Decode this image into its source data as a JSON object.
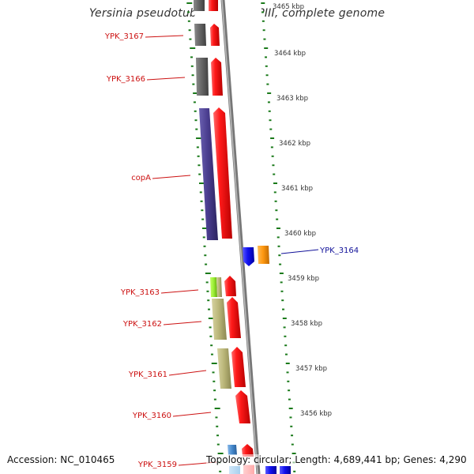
{
  "title": "Yersinia pseudotuberculosis YPIII, complete genome",
  "footer": {
    "accession": "Accession: NC_010465",
    "stats": "Topology: circular; Length: 4,689,441 bp; Genes: 4,290"
  },
  "colors": {
    "forward_cds": "#ee1111",
    "forward_label": "#cc1111",
    "reverse_label": "#111199",
    "backbone": "#888888",
    "tick": "#1a7a1a"
  },
  "ruler": [
    "3465 kbp",
    "3464 kbp",
    "3463 kbp",
    "3462 kbp",
    "3461 kbp",
    "3460 kbp",
    "3459 kbp",
    "3458 kbp",
    "3457 kbp",
    "3456 kbp"
  ],
  "genes": [
    {
      "label": "YPK_3167",
      "strand": "forward",
      "color": "#666666"
    },
    {
      "label": "YPK_3166",
      "strand": "forward",
      "color": "#666666"
    },
    {
      "label": "copA",
      "strand": "forward",
      "color": "#4a3d8f"
    },
    {
      "label": "YPK_3164",
      "strand": "reverse",
      "color": "#1111ee"
    },
    {
      "label": "YPK_3163",
      "strand": "forward",
      "color": "#99ee33"
    },
    {
      "label": "YPK_3162",
      "strand": "forward",
      "color": "#bbb77a"
    },
    {
      "label": "YPK_3161",
      "strand": "forward",
      "color": "#bbb77a"
    },
    {
      "label": "YPK_3160",
      "strand": "forward",
      "color": "#ee1111"
    },
    {
      "label": "YPK_3159",
      "strand": "forward",
      "color": "#4488cc"
    }
  ]
}
